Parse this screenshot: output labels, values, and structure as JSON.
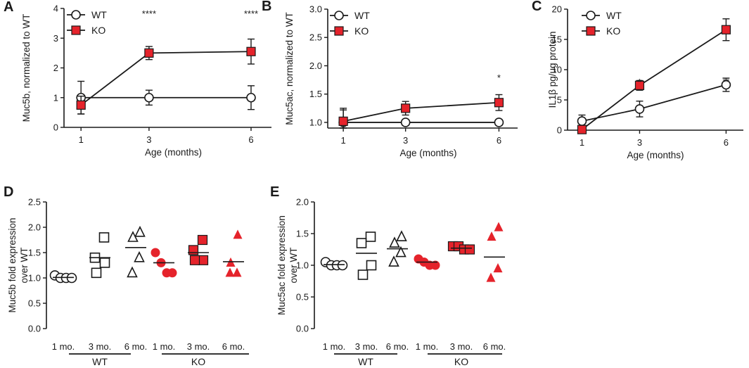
{
  "chart_data": [
    {
      "id": "A",
      "type": "line",
      "panel_label": "A",
      "xlabel": "Age (months)",
      "ylabel": "Muc5b, normalized to WT",
      "x": [
        1,
        3,
        6
      ],
      "x_ticks": [
        "1",
        "3",
        "6"
      ],
      "ylim": [
        0,
        4
      ],
      "y_ticks": [
        "0",
        "1",
        "2",
        "3",
        "4"
      ],
      "series": [
        {
          "name": "WT",
          "marker": "circle",
          "values": [
            1.0,
            1.0,
            1.0
          ],
          "errors": [
            0.55,
            0.25,
            0.4
          ]
        },
        {
          "name": "KO",
          "marker": "square",
          "values": [
            0.75,
            2.5,
            2.55
          ],
          "errors": [
            0.3,
            0.22,
            0.42
          ]
        }
      ],
      "annotations": [
        {
          "x": 3,
          "text": "****"
        },
        {
          "x": 6,
          "text": "****"
        }
      ],
      "legend": "top-left"
    },
    {
      "id": "B",
      "type": "line",
      "panel_label": "B",
      "xlabel": "Age (months)",
      "ylabel": "Muc5ac, normalized to WT",
      "x": [
        1,
        3,
        6
      ],
      "x_ticks": [
        "1",
        "3",
        "6"
      ],
      "ylim": [
        0.9,
        3.0
      ],
      "y_ticks": [
        "1.0",
        "1.5",
        "2.0",
        "2.5",
        "3.0"
      ],
      "series": [
        {
          "name": "WT",
          "marker": "circle",
          "values": [
            1.0,
            1.0,
            1.0
          ],
          "errors": [
            0.25,
            0.05,
            0.05
          ]
        },
        {
          "name": "KO",
          "marker": "square",
          "values": [
            1.02,
            1.25,
            1.35
          ],
          "errors": [
            0.2,
            0.12,
            0.14
          ]
        }
      ],
      "annotations": [
        {
          "x": 6,
          "text": "*"
        }
      ],
      "legend": "top-left"
    },
    {
      "id": "C",
      "type": "line",
      "panel_label": "C",
      "xlabel": "Age (months)",
      "ylabel": "IL1β pg/ug protein",
      "x": [
        1,
        3,
        6
      ],
      "x_ticks": [
        "1",
        "3",
        "6"
      ],
      "ylim": [
        0,
        20
      ],
      "y_ticks": [
        "0",
        "5",
        "10",
        "15",
        "20"
      ],
      "series": [
        {
          "name": "WT",
          "marker": "circle",
          "values": [
            1.5,
            3.5,
            7.5
          ],
          "errors": [
            1.0,
            1.3,
            1.1
          ]
        },
        {
          "name": "KO",
          "marker": "square",
          "values": [
            0.1,
            7.4,
            16.6
          ],
          "errors": [
            0.3,
            0.8,
            1.8
          ]
        }
      ],
      "annotations": [
        {
          "x": 3,
          "text": "*"
        },
        {
          "x": 6,
          "text": "**"
        }
      ],
      "legend": "top-left"
    },
    {
      "id": "D",
      "type": "scatter",
      "panel_label": "D",
      "xlabel": "",
      "ylabel": "Muc5b fold expression over WT",
      "ylim": [
        0,
        2.5
      ],
      "y_ticks": [
        "0.0",
        "0.5",
        "1.0",
        "1.5",
        "2.0",
        "2.5"
      ],
      "categories": [
        "1 mo.",
        "3 mo.",
        "6 mo.",
        "1 mo.",
        "3 mo.",
        "6 mo."
      ],
      "group_labels": [
        "WT",
        "KO"
      ],
      "groups": [
        {
          "label": "1 mo.",
          "group": "WT",
          "marker": "circle",
          "filled": false,
          "points": [
            1.05,
            1.0,
            1.0,
            1.0
          ],
          "mean": 1.01
        },
        {
          "label": "3 mo.",
          "group": "WT",
          "marker": "square",
          "filled": false,
          "points": [
            1.8,
            1.4,
            1.3,
            1.1
          ],
          "mean": 1.4
        },
        {
          "label": "6 mo.",
          "group": "WT",
          "marker": "triangle",
          "filled": false,
          "points": [
            1.9,
            1.8,
            1.4,
            1.1
          ],
          "mean": 1.6
        },
        {
          "label": "1 mo.",
          "group": "KO",
          "marker": "circle",
          "filled": true,
          "points": [
            1.5,
            1.3,
            1.1,
            1.1
          ],
          "mean": 1.3
        },
        {
          "label": "3 mo.",
          "group": "KO",
          "marker": "square",
          "filled": true,
          "points": [
            1.75,
            1.55,
            1.35,
            1.35
          ],
          "mean": 1.5
        },
        {
          "label": "6 mo.",
          "group": "KO",
          "marker": "triangle",
          "filled": true,
          "points": [
            1.85,
            1.3,
            1.1,
            1.1
          ],
          "mean": 1.32
        }
      ]
    },
    {
      "id": "E",
      "type": "scatter",
      "panel_label": "E",
      "xlabel": "",
      "ylabel": "Muc5ac fold expression over WT",
      "ylim": [
        0,
        2.0
      ],
      "y_ticks": [
        "0.0",
        "0.5",
        "1.0",
        "1.5",
        "2.0"
      ],
      "categories": [
        "1 mo.",
        "3 mo.",
        "6 mo.",
        "1 mo.",
        "3 mo.",
        "6 mo."
      ],
      "group_labels": [
        "WT",
        "KO"
      ],
      "groups": [
        {
          "label": "1 mo.",
          "group": "WT",
          "marker": "circle",
          "filled": false,
          "points": [
            1.05,
            1.0,
            1.0,
            1.0
          ],
          "mean": 1.01
        },
        {
          "label": "3 mo.",
          "group": "WT",
          "marker": "square",
          "filled": false,
          "points": [
            1.45,
            1.35,
            1.0,
            0.85
          ],
          "mean": 1.19
        },
        {
          "label": "6 mo.",
          "group": "WT",
          "marker": "triangle",
          "filled": false,
          "points": [
            1.45,
            1.35,
            1.2,
            1.05
          ],
          "mean": 1.26
        },
        {
          "label": "1 mo.",
          "group": "KO",
          "marker": "circle",
          "filled": true,
          "points": [
            1.1,
            1.05,
            1.0,
            1.0
          ],
          "mean": 1.05
        },
        {
          "label": "3 mo.",
          "group": "KO",
          "marker": "square",
          "filled": true,
          "points": [
            1.3,
            1.3,
            1.25,
            1.25
          ],
          "mean": 1.27
        },
        {
          "label": "6 mo.",
          "group": "KO",
          "marker": "triangle",
          "filled": true,
          "points": [
            1.6,
            1.45,
            0.95,
            0.8
          ],
          "mean": 1.13
        }
      ]
    }
  ],
  "colors": {
    "ko_fill": "#e5232b",
    "axis": "#1a1a1a",
    "open_fill": "#ffffff"
  }
}
